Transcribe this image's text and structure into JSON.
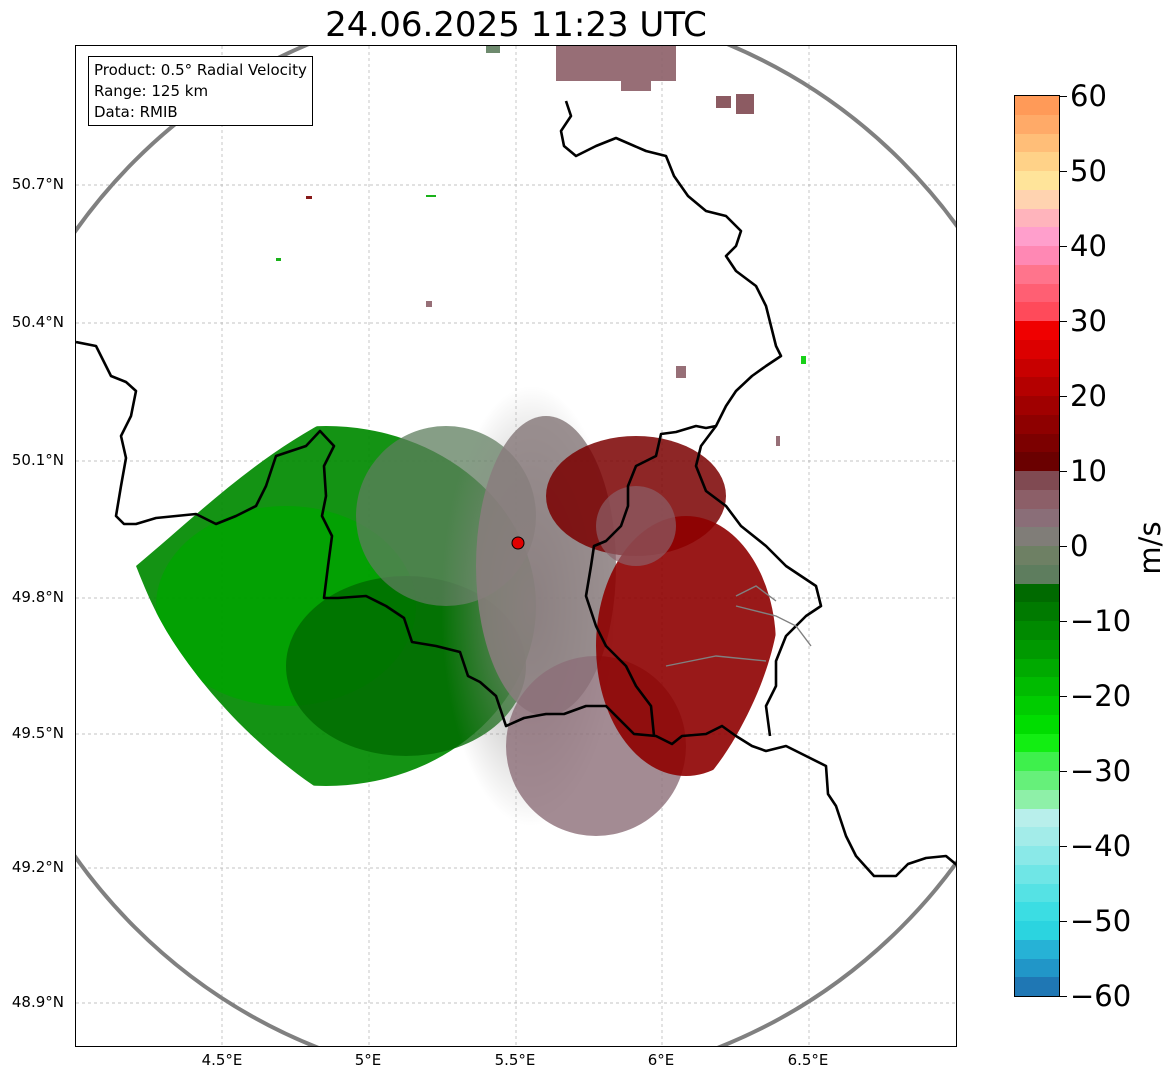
{
  "title": "24.06.2025 11:23 UTC",
  "info_box": {
    "product": "Product: 0.5° Radial Velocity",
    "range": "Range: 125 km",
    "data": "Data: RMIB"
  },
  "map": {
    "lat_ticks": [
      "50.7°N",
      "50.4°N",
      "50.1°N",
      "49.8°N",
      "49.5°N",
      "49.2°N",
      "48.9°N"
    ],
    "lon_ticks": [
      "4.5°E",
      "5°E",
      "5.5°E",
      "6°E",
      "6.5°E"
    ],
    "radar_site": "radar-site-marker",
    "range_ring_color": "#808080",
    "border_color": "#000000"
  },
  "colorbar": {
    "unit": "m/s",
    "tick_labels": [
      "60",
      "50",
      "40",
      "30",
      "20",
      "10",
      "0",
      "−10",
      "−20",
      "−30",
      "−40",
      "−50",
      "−60"
    ],
    "min": -60,
    "max": 60,
    "colors_bottom_to_top": [
      "#1f77b4",
      "#2196c8",
      "#26b2d6",
      "#2bd4e0",
      "#3bdde3",
      "#55e2e4",
      "#6fe6e6",
      "#8ae9e8",
      "#a3ece9",
      "#b8efeb",
      "#8ef0a8",
      "#66f07a",
      "#3ef04c",
      "#12ee12",
      "#00dd00",
      "#00cc00",
      "#00bb00",
      "#00aa00",
      "#009900",
      "#008a00",
      "#007a00",
      "#006a00",
      "#5e7d5e",
      "#6e8064",
      "#807d78",
      "#8a6e78",
      "#8c5f68",
      "#804a52",
      "#6a0000",
      "#7c0000",
      "#8e0000",
      "#a00000",
      "#b40000",
      "#c80000",
      "#dc0000",
      "#f00000",
      "#ff4a5a",
      "#ff5f73",
      "#ff748c",
      "#ff88b4",
      "#ff9fcc",
      "#ffb4bc",
      "#ffd3b0",
      "#ffe49a",
      "#ffd288",
      "#ffbe78",
      "#ffaa68",
      "#ff9a58"
    ]
  }
}
